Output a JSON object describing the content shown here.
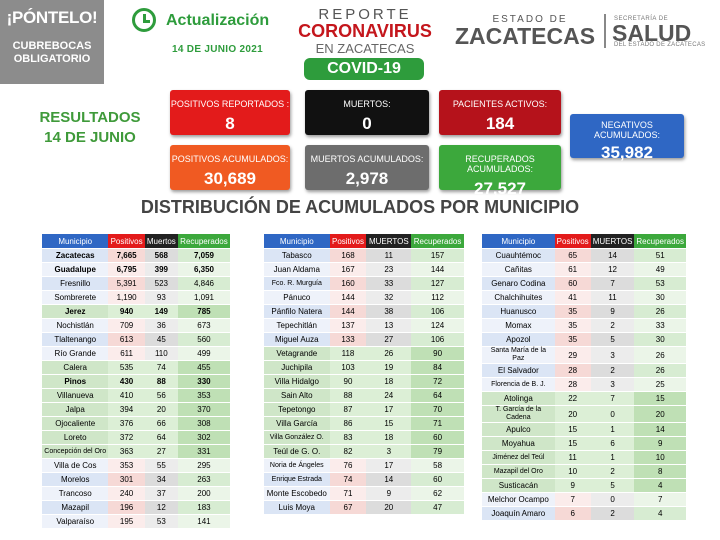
{
  "header": {
    "badge_line1": "¡PÓNTELO!",
    "badge_line2": "CUBREBOCAS",
    "badge_line3": "OBLIGATORIO",
    "update_label": "Actualización",
    "date": "14 DE JUNIO 2021",
    "report_line1": "REPORTE",
    "report_line2": "CORONAVIRUS",
    "report_line3": "EN ZACATECAS",
    "covid_label": "COVID-19",
    "estado_line1": "ESTADO DE",
    "estado_line2": "ZACATECAS",
    "secretaria": "SECRETARÍA DE",
    "salud": "SALUD",
    "salud_sub": "DEL ESTADO DE ZACATECAS"
  },
  "results_title_line1": "RESULTADOS",
  "results_title_line2": "14 DE JUNIO",
  "stats": [
    {
      "label": "POSITIVOS REPORTADOS :",
      "value": "8"
    },
    {
      "label": "MUERTOS:",
      "value": "0"
    },
    {
      "label": "PACIENTES ACTIVOS:",
      "value": "184"
    },
    {
      "label": "NEGATIVOS ACUMULADOS:",
      "value": "35,982"
    },
    {
      "label": "POSITIVOS ACUMULADOS:",
      "value": "30,689"
    },
    {
      "label": "MUERTOS ACUMULADOS:",
      "value": "2,978"
    },
    {
      "label": "RECUPERADOS ACUMULADOS:",
      "value": "27,527"
    }
  ],
  "distribution_title": "DISTRIBUCIÓN DE ACUMULADOS POR MUNICIPIO",
  "columns": [
    "Municipio",
    "Positivos",
    "Muertos",
    "Recuperados"
  ],
  "columns_b": [
    "Municipio",
    "Positivos",
    "MUERTOS",
    "Recuperados"
  ],
  "table1": [
    [
      "Zacatecas",
      "7,665",
      "568",
      "7,059"
    ],
    [
      "Guadalupe",
      "6,795",
      "399",
      "6,350"
    ],
    [
      "Fresnillo",
      "5,391",
      "523",
      "4,846"
    ],
    [
      "Sombrerete",
      "1,190",
      "93",
      "1,091"
    ],
    [
      "Jerez",
      "940",
      "149",
      "785"
    ],
    [
      "Nochistlán",
      "709",
      "36",
      "673"
    ],
    [
      "Tlaltenango",
      "613",
      "45",
      "560"
    ],
    [
      "Río Grande",
      "611",
      "110",
      "499"
    ],
    [
      "Calera",
      "535",
      "74",
      "455"
    ],
    [
      "Pinos",
      "430",
      "88",
      "330"
    ],
    [
      "Villanueva",
      "410",
      "56",
      "353"
    ],
    [
      "Jalpa",
      "394",
      "20",
      "370"
    ],
    [
      "Ojocaliente",
      "376",
      "66",
      "308"
    ],
    [
      "Loreto",
      "372",
      "64",
      "302"
    ],
    [
      "Concepción del Oro",
      "363",
      "27",
      "331"
    ],
    [
      "Villa de Cos",
      "353",
      "55",
      "295"
    ],
    [
      "Morelos",
      "301",
      "34",
      "263"
    ],
    [
      "Trancoso",
      "240",
      "37",
      "200"
    ],
    [
      "Mazapil",
      "196",
      "12",
      "183"
    ],
    [
      "Valparaíso",
      "195",
      "53",
      "141"
    ]
  ],
  "table2": [
    [
      "Tabasco",
      "168",
      "11",
      "157"
    ],
    [
      "Juan Aldama",
      "167",
      "23",
      "144"
    ],
    [
      "Fco. R. Murguía",
      "160",
      "33",
      "127"
    ],
    [
      "Pánuco",
      "144",
      "32",
      "112"
    ],
    [
      "Pánfilo Natera",
      "144",
      "38",
      "106"
    ],
    [
      "Tepechitlán",
      "137",
      "13",
      "124"
    ],
    [
      "Miguel Auza",
      "133",
      "27",
      "106"
    ],
    [
      "Vetagrande",
      "118",
      "26",
      "90"
    ],
    [
      "Juchipila",
      "103",
      "19",
      "84"
    ],
    [
      "Villa Hidalgo",
      "90",
      "18",
      "72"
    ],
    [
      "Sain Alto",
      "88",
      "24",
      "64"
    ],
    [
      "Tepetongo",
      "87",
      "17",
      "70"
    ],
    [
      "Villa García",
      "86",
      "15",
      "71"
    ],
    [
      "Villa González O.",
      "83",
      "18",
      "60"
    ],
    [
      "Teúl de G. O.",
      "82",
      "3",
      "79"
    ],
    [
      "Noria de Ángeles",
      "76",
      "17",
      "58"
    ],
    [
      "Enrique Estrada",
      "74",
      "14",
      "60"
    ],
    [
      "Monte Escobedo",
      "71",
      "9",
      "62"
    ],
    [
      "Luis Moya",
      "67",
      "20",
      "47"
    ]
  ],
  "table3": [
    [
      "Cuauhtémoc",
      "65",
      "14",
      "51"
    ],
    [
      "Cañitas",
      "61",
      "12",
      "49"
    ],
    [
      "Genaro Codina",
      "60",
      "7",
      "53"
    ],
    [
      "Chalchihuites",
      "41",
      "11",
      "30"
    ],
    [
      "Huanusco",
      "35",
      "9",
      "26"
    ],
    [
      "Momax",
      "35",
      "2",
      "33"
    ],
    [
      "Apozol",
      "35",
      "5",
      "30"
    ],
    [
      "Santa María de la Paz",
      "29",
      "3",
      "26"
    ],
    [
      "El Salvador",
      "28",
      "2",
      "26"
    ],
    [
      "Florencia de B. J.",
      "28",
      "3",
      "25"
    ],
    [
      "Atolinga",
      "22",
      "7",
      "15"
    ],
    [
      "T. García de la Cadena",
      "20",
      "0",
      "20"
    ],
    [
      "Apulco",
      "15",
      "1",
      "14"
    ],
    [
      "Moyahua",
      "15",
      "6",
      "9"
    ],
    [
      "Jiménez del Teúl",
      "11",
      "1",
      "10"
    ],
    [
      "Mazapil del Oro",
      "10",
      "2",
      "8"
    ],
    [
      "Susticacán",
      "9",
      "5",
      "4"
    ],
    [
      "Melchor Ocampo",
      "7",
      "0",
      "7"
    ],
    [
      "Joaquín Amaro",
      "6",
      "2",
      "4"
    ]
  ],
  "colors": {
    "green": "#2e9c3c",
    "red": "#e31b1b",
    "blue": "#2f67c4"
  }
}
